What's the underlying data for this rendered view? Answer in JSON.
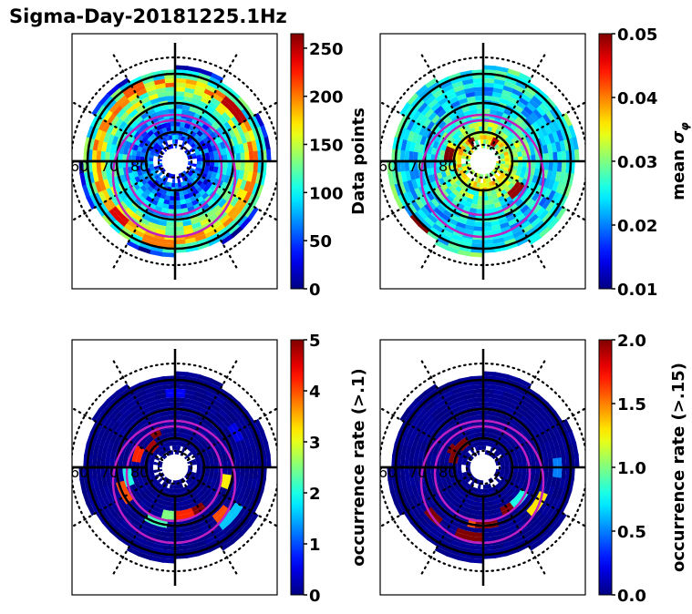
{
  "figure": {
    "title": "Sigma-Day-20181225.1Hz"
  },
  "chart_data": [
    {
      "type": "heatmap",
      "projection": "polar (magnetic latitude vs MLT)",
      "panel": "top-left",
      "colorbar": {
        "label": "Data points",
        "min": 0,
        "max": 265,
        "ticks": [
          0,
          50,
          100,
          150,
          200,
          250
        ],
        "tick_labels": [
          "0",
          "50",
          "100",
          "150",
          "200",
          "250"
        ],
        "cmap": "jet"
      },
      "lat_labels": [
        "60",
        "70",
        "80"
      ],
      "lat_circles_solid": [
        60,
        70,
        80
      ],
      "lat_circle_dotted": 50,
      "radial_rings_deg": [
        90,
        87,
        84,
        81,
        78,
        75,
        72,
        69,
        66,
        63,
        60,
        57
      ],
      "ring_values": [
        null,
        30,
        40,
        60,
        50,
        70,
        90,
        110,
        140,
        180,
        110,
        30
      ],
      "hotspots": [
        {
          "mlt_deg": 40,
          "lat": 63,
          "value": 250
        },
        {
          "mlt_deg": 225,
          "lat": 63,
          "value": 240
        },
        {
          "mlt_deg": 260,
          "lat": 62,
          "value": 200
        },
        {
          "mlt_deg": 120,
          "lat": 62,
          "value": 210
        }
      ]
    },
    {
      "type": "heatmap",
      "projection": "polar (magnetic latitude vs MLT)",
      "panel": "top-right",
      "colorbar": {
        "label": "mean σφ",
        "label_main": "mean ",
        "label_sym": "σ",
        "label_sub": "φ",
        "min": 0.01,
        "max": 0.05,
        "ticks": [
          0.01,
          0.02,
          0.03,
          0.04,
          0.05
        ],
        "tick_labels": [
          "0.01",
          "0.02",
          "0.03",
          "0.04",
          "0.05"
        ],
        "cmap": "jet"
      },
      "lat_labels": [
        "60",
        "70",
        "80"
      ],
      "lat_circles_solid": [
        60,
        70,
        80
      ],
      "lat_circle_dotted": 50,
      "radial_rings_deg": [
        90,
        87,
        84,
        81,
        78,
        75,
        72,
        69,
        66,
        63,
        60,
        57
      ],
      "ring_values": [
        null,
        0.028,
        0.032,
        0.035,
        0.03,
        0.027,
        0.025,
        0.024,
        0.023,
        0.024,
        0.025,
        0.027
      ],
      "hotspots": [
        {
          "mlt_deg": 225,
          "lat": 59,
          "value": 0.05
        },
        {
          "mlt_deg": 170,
          "lat": 78,
          "value": 0.05
        },
        {
          "mlt_deg": 120,
          "lat": 82,
          "value": 0.05
        },
        {
          "mlt_deg": 320,
          "lat": 75,
          "value": 0.049
        },
        {
          "mlt_deg": 60,
          "lat": 83,
          "value": 0.048
        }
      ]
    },
    {
      "type": "heatmap",
      "projection": "polar (magnetic latitude vs MLT)",
      "panel": "bottom-left",
      "colorbar": {
        "label": "occurrence rate (>.1)",
        "min": 0,
        "max": 5,
        "ticks": [
          0,
          1,
          2,
          3,
          4,
          5
        ],
        "tick_labels": [
          "0",
          "1",
          "2",
          "3",
          "4",
          "5"
        ],
        "cmap": "jet"
      },
      "lat_labels": [
        "60",
        "70",
        "80"
      ],
      "lat_circles_solid": [
        60,
        70,
        80
      ],
      "lat_circle_dotted": 50,
      "background_value": 0,
      "hotspots": [
        {
          "mlt_deg": 120,
          "lat": 76,
          "value": 5
        },
        {
          "mlt_deg": 140,
          "lat": 79,
          "value": 4.8
        },
        {
          "mlt_deg": 160,
          "lat": 77,
          "value": 4.2
        },
        {
          "mlt_deg": 190,
          "lat": 73,
          "value": 2.0
        },
        {
          "mlt_deg": 205,
          "lat": 70,
          "value": 4.0
        },
        {
          "mlt_deg": 265,
          "lat": 73,
          "value": 2.5
        },
        {
          "mlt_deg": 280,
          "lat": 73,
          "value": 4.2
        },
        {
          "mlt_deg": 300,
          "lat": 74,
          "value": 5
        },
        {
          "mlt_deg": 315,
          "lat": 68,
          "value": 4.0
        },
        {
          "mlt_deg": 320,
          "lat": 64,
          "value": 1.6
        },
        {
          "mlt_deg": 250,
          "lat": 70,
          "value": 2.2
        },
        {
          "mlt_deg": 345,
          "lat": 72,
          "value": 3.2
        },
        {
          "mlt_deg": 30,
          "lat": 66,
          "value": 0.5
        },
        {
          "mlt_deg": 90,
          "lat": 64,
          "value": 0.6
        }
      ]
    },
    {
      "type": "heatmap",
      "projection": "polar (magnetic latitude vs MLT)",
      "panel": "bottom-right",
      "colorbar": {
        "label": "occurrence rate (>.15)",
        "min": 0.0,
        "max": 2.0,
        "ticks": [
          0.0,
          0.5,
          1.0,
          1.5,
          2.0
        ],
        "tick_labels": [
          "0.0",
          "0.5",
          "1.0",
          "1.5",
          "2.0"
        ],
        "cmap": "jet"
      },
      "lat_labels": [
        "60",
        "70",
        "80"
      ],
      "lat_circles_solid": [
        60,
        70,
        80
      ],
      "lat_circle_dotted": 50,
      "background_value": 0,
      "hotspots": [
        {
          "mlt_deg": 130,
          "lat": 79,
          "value": 2.0
        },
        {
          "mlt_deg": 150,
          "lat": 78,
          "value": 2.0
        },
        {
          "mlt_deg": 165,
          "lat": 80,
          "value": 2.0
        },
        {
          "mlt_deg": 225,
          "lat": 66,
          "value": 2.0
        },
        {
          "mlt_deg": 265,
          "lat": 70,
          "value": 1.6
        },
        {
          "mlt_deg": 275,
          "lat": 70,
          "value": 2.0
        },
        {
          "mlt_deg": 300,
          "lat": 73,
          "value": 2.0
        },
        {
          "mlt_deg": 260,
          "lat": 66,
          "value": 2.0
        },
        {
          "mlt_deg": 320,
          "lat": 74,
          "value": 0.8
        },
        {
          "mlt_deg": 325,
          "lat": 67,
          "value": 1.3
        },
        {
          "mlt_deg": 0,
          "lat": 64,
          "value": 0.5
        }
      ]
    }
  ]
}
